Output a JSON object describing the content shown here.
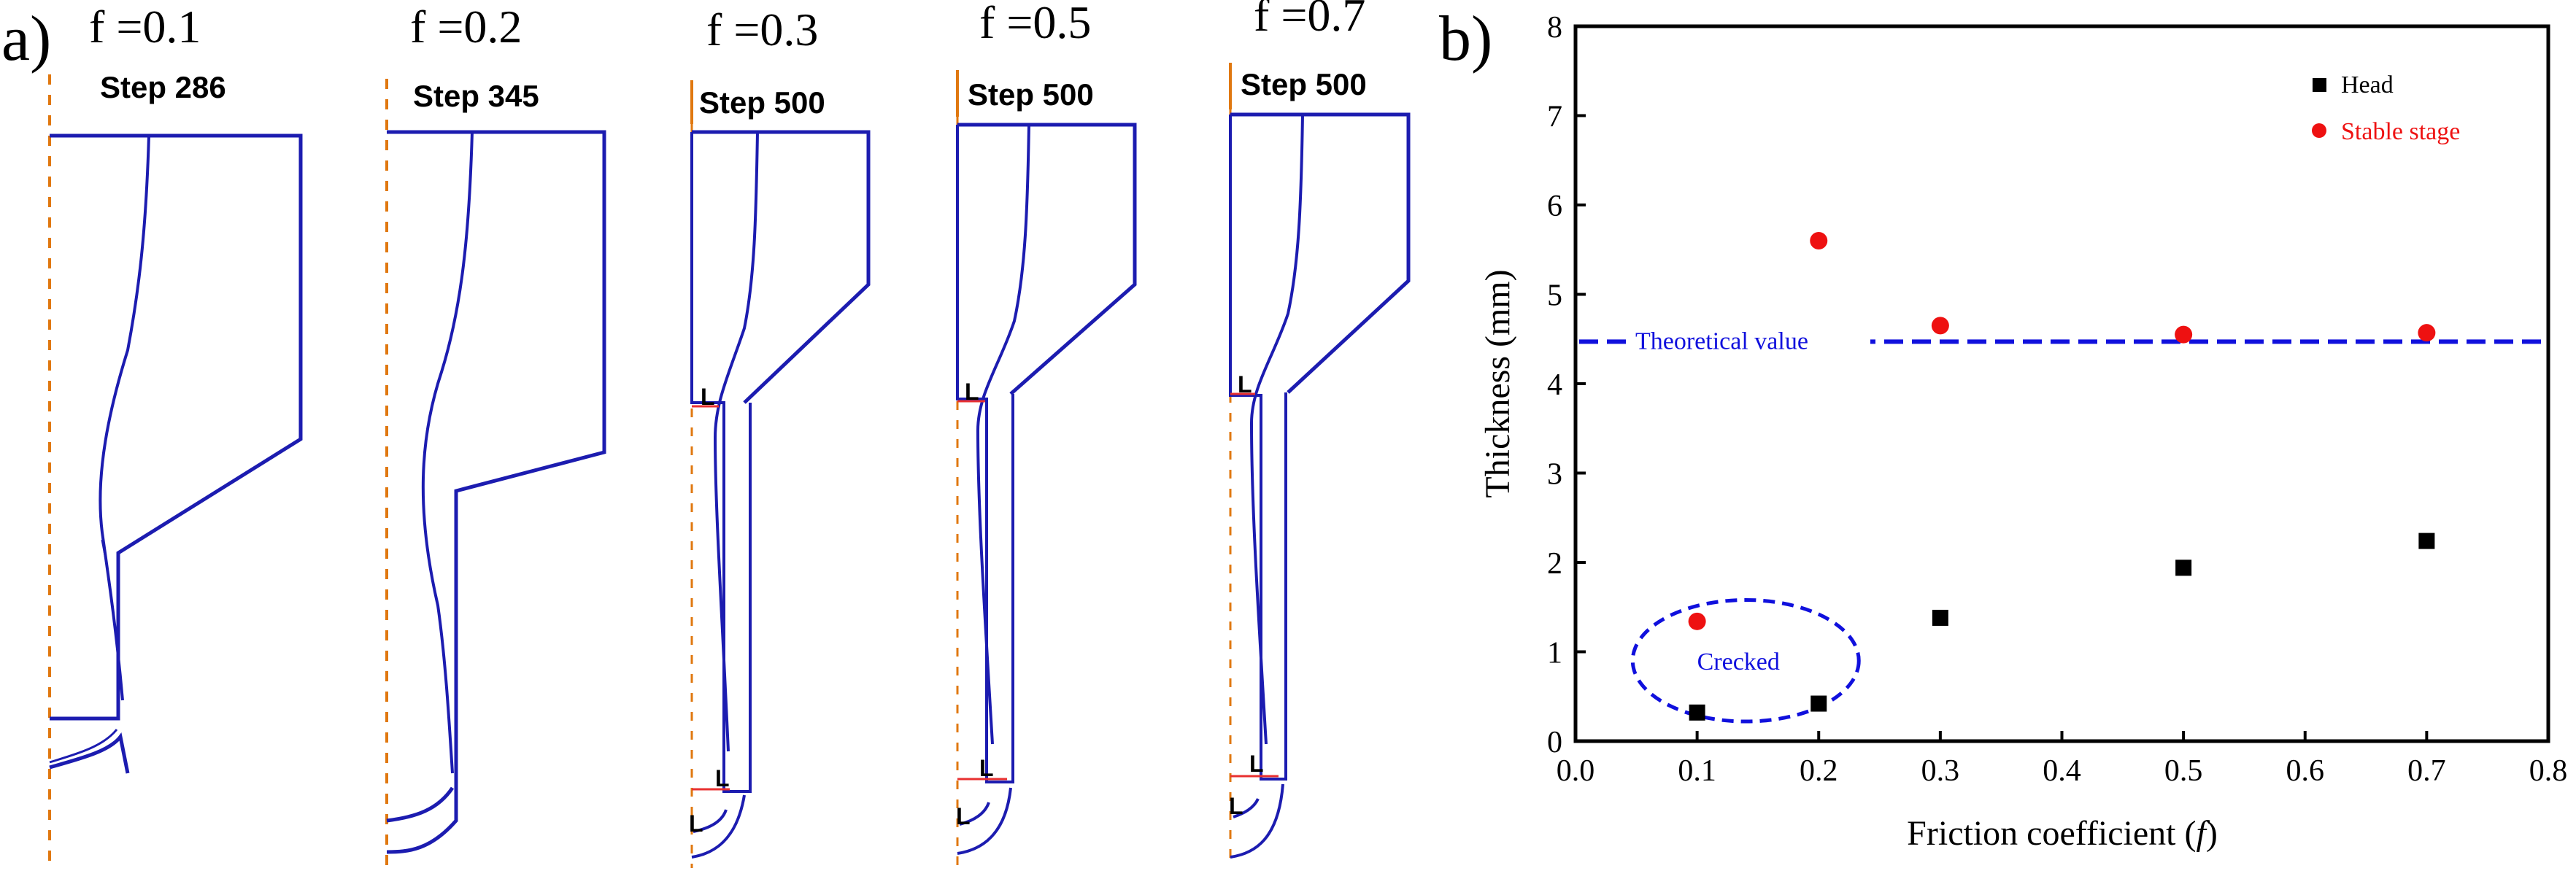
{
  "panel_a": {
    "label": "a)",
    "simulations": [
      {
        "f_label": "f =0.1",
        "step_label": "Step 286"
      },
      {
        "f_label": "f =0.2",
        "step_label": "Step 345"
      },
      {
        "f_label": "f =0.3",
        "step_label": "Step 500"
      },
      {
        "f_label": "f =0.5",
        "step_label": "Step 500"
      },
      {
        "f_label": "f =0.7",
        "step_label": "Step 500"
      }
    ],
    "marker_glyph": "L"
  },
  "panel_b": {
    "label": "b)"
  },
  "chart_data": {
    "type": "scatter",
    "xlabel_main": "Friction coefficient (",
    "xlabel_var": "f",
    "xlabel_end": ")",
    "ylabel": "Thickness (mm)",
    "xlim": [
      0.0,
      0.8
    ],
    "ylim": [
      0,
      8
    ],
    "xticks": [
      0.0,
      0.1,
      0.2,
      0.3,
      0.4,
      0.5,
      0.6,
      0.7,
      0.8
    ],
    "xtick_labels": [
      "0.0",
      "0.1",
      "0.2",
      "0.3",
      "0.4",
      "0.5",
      "0.6",
      "0.7",
      "0.8"
    ],
    "yticks": [
      0,
      1,
      2,
      3,
      4,
      5,
      6,
      7,
      8
    ],
    "ytick_labels": [
      "0",
      "1",
      "2",
      "3",
      "4",
      "5",
      "6",
      "7",
      "8"
    ],
    "series": [
      {
        "name": "Head",
        "marker": "square",
        "color": "#000000",
        "x": [
          0.1,
          0.2,
          0.3,
          0.5,
          0.7
        ],
        "y": [
          0.32,
          0.42,
          1.38,
          1.94,
          2.24
        ]
      },
      {
        "name": "Stable stage",
        "marker": "circle",
        "color": "#ee1111",
        "x": [
          0.1,
          0.2,
          0.3,
          0.5,
          0.7
        ],
        "y": [
          1.34,
          5.6,
          4.65,
          4.55,
          4.57
        ]
      }
    ],
    "reference_line": {
      "label": "Theoretical value",
      "y": 4.47,
      "color": "#1010dd",
      "style": "dashed"
    },
    "annotation": {
      "text": "Crecked",
      "color": "#1010dd",
      "center": [
        0.14,
        0.9
      ],
      "radius": [
        0.093,
        0.68
      ]
    },
    "legend_position": "top-right"
  },
  "colors": {
    "outline": "#1c1cb0",
    "axis": "#e07810",
    "marker": "#e83030"
  }
}
